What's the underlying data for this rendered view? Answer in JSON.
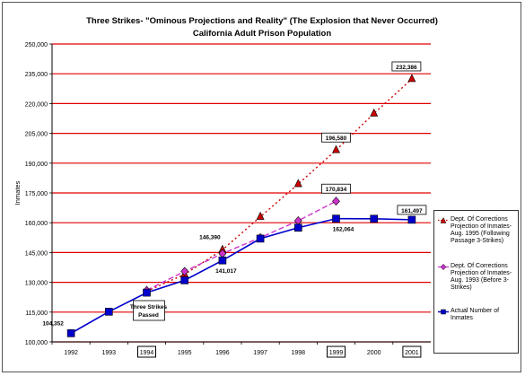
{
  "chart_data": {
    "type": "line",
    "title": "Three Strikes- \"Ominous Projections and Reality\" (The Explosion that Never Occurred)",
    "subtitle": "California Adult Prison Population",
    "ylabel": "Inmates",
    "xlabel": "",
    "ylim": [
      100000,
      250000
    ],
    "yticks": [
      100000,
      115000,
      130000,
      145000,
      160000,
      175000,
      190000,
      205000,
      220000,
      235000,
      250000
    ],
    "ytick_labels": [
      "100,000",
      "115,000",
      "130,000",
      "145,000",
      "160,000",
      "175,000",
      "190,000",
      "205,000",
      "220,000",
      "235,000",
      "250,000"
    ],
    "categories": [
      "1992",
      "1993",
      "1994",
      "1995",
      "1996",
      "1997",
      "1998",
      "1999",
      "2000",
      "2001"
    ],
    "boxed_categories": [
      "1994",
      "1999",
      "2001"
    ],
    "grid": "horizontal, red",
    "legend_position": "right",
    "series": [
      {
        "name": "Dept. Of Corrections Projection of Inmates- Aug. 1995 (Following Passage 3-Strikes)",
        "color": "#cc0000",
        "line_style": "dotted",
        "marker": "triangle",
        "x": [
          "1994",
          "1995",
          "1996",
          "1997",
          "1998",
          "1999",
          "2000",
          "2001"
        ],
        "values": [
          125500,
          134000,
          146390,
          163000,
          179500,
          196580,
          215000,
          232386
        ]
      },
      {
        "name": "Dept. Of Corrections Projection of Inmates- Aug. 1993 (Before 3-Strikes)",
        "color": "#cc33cc",
        "line_style": "dashed",
        "marker": "diamond",
        "x": [
          "1994",
          "1995",
          "1996",
          "1997",
          "1998",
          "1999"
        ],
        "values": [
          126000,
          135500,
          144500,
          152500,
          161000,
          170834
        ]
      },
      {
        "name": "Actual Number of Inmates",
        "color": "#0000cc",
        "line_style": "solid",
        "marker": "square",
        "x": [
          "1992",
          "1993",
          "1994",
          "1995",
          "1996",
          "1997",
          "1998",
          "1999",
          "2000",
          "2001"
        ],
        "values": [
          104352,
          115200,
          124800,
          131000,
          141017,
          152000,
          157500,
          162064,
          162000,
          161497
        ]
      }
    ],
    "data_labels": [
      {
        "text": "104,352",
        "x": "1992",
        "value": 104352,
        "boxed": false
      },
      {
        "text": "146,390",
        "x": "1996",
        "value": 146390,
        "boxed": false
      },
      {
        "text": "141,017",
        "x": "1996",
        "value": 141017,
        "boxed": false
      },
      {
        "text": "170,834",
        "x": "1999",
        "value": 170834,
        "boxed": true
      },
      {
        "text": "196,580",
        "x": "1999",
        "value": 196580,
        "boxed": true
      },
      {
        "text": "232,386",
        "x": "2001",
        "value": 232386,
        "boxed": true
      },
      {
        "text": "161,497",
        "x": "2001",
        "value": 161497,
        "boxed": true
      },
      {
        "text": "162,064",
        "x": "1999",
        "value": 162064,
        "boxed": false
      }
    ],
    "annotations": [
      {
        "text": "Three Strikes Passed",
        "x": "1994"
      }
    ]
  },
  "legend": {
    "items": [
      {
        "label": "Dept. Of Corrections Projection of Inmates- Aug. 1995 (Following Passage 3-Strikes)"
      },
      {
        "label": "Dept. Of Corrections Projection of Inmates- Aug. 1993 (Before 3-Strikes)"
      },
      {
        "label": "Actual Number of Inmates"
      }
    ]
  }
}
